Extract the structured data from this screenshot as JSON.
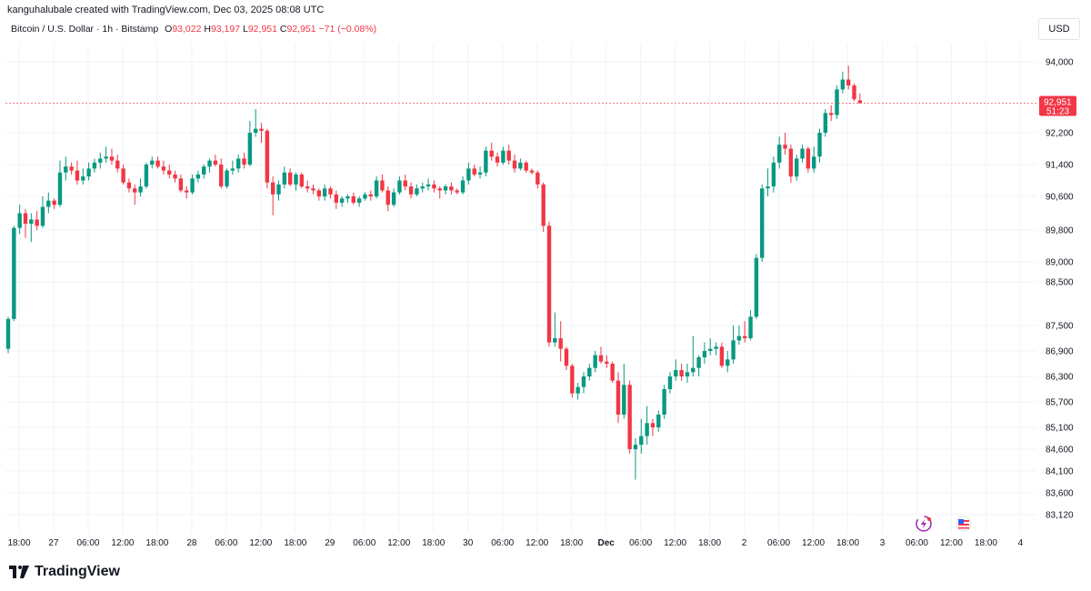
{
  "header": {
    "attribution": "kanguhalubale created with TradingView.com, Dec 03, 2025 08:08 UTC"
  },
  "legend": {
    "symbol": "Bitcoin / U.S. Dollar · 1h · Bitstamp",
    "o_label": "O",
    "o_value": "93,022",
    "h_label": "H",
    "h_value": "93,197",
    "l_label": "L",
    "l_value": "92,951",
    "c_label": "C",
    "c_value": "92,951",
    "change": "−71 (−0.08%)"
  },
  "currency": "USD",
  "price_tag": {
    "price": "92,951",
    "countdown": "51:23"
  },
  "footer": {
    "brand": "TradingView"
  },
  "colors": {
    "up": "#089981",
    "down": "#f23645",
    "text": "#131722",
    "grid": "#f0f3fa"
  },
  "icons": [
    "flash-icon",
    "us-flag-icon"
  ],
  "chart_data": {
    "type": "candlestick",
    "ylim": [
      82800,
      94400
    ],
    "y_ticks": [
      94000,
      92200,
      91400,
      90600,
      89800,
      89000,
      88500,
      87500,
      86900,
      86300,
      85700,
      85100,
      84600,
      84100,
      83600,
      83120
    ],
    "y_tick_labels": [
      "94,000",
      "92,200",
      "91,400",
      "90,600",
      "89,800",
      "89,000",
      "88,500",
      "87,500",
      "86,900",
      "86,300",
      "85,700",
      "85,100",
      "84,600",
      "84,100",
      "83,600",
      "83,120"
    ],
    "x_ticks": [
      {
        "label": "18:00",
        "bar": 0
      },
      {
        "label": "27",
        "bar": 6
      },
      {
        "label": "06:00",
        "bar": 12
      },
      {
        "label": "12:00",
        "bar": 18
      },
      {
        "label": "18:00",
        "bar": 24
      },
      {
        "label": "28",
        "bar": 30
      },
      {
        "label": "06:00",
        "bar": 36
      },
      {
        "label": "12:00",
        "bar": 42
      },
      {
        "label": "18:00",
        "bar": 48
      },
      {
        "label": "29",
        "bar": 54
      },
      {
        "label": "06:00",
        "bar": 60
      },
      {
        "label": "12:00",
        "bar": 66
      },
      {
        "label": "18:00",
        "bar": 72
      },
      {
        "label": "30",
        "bar": 78
      },
      {
        "label": "06:00",
        "bar": 84
      },
      {
        "label": "12:00",
        "bar": 90
      },
      {
        "label": "18:00",
        "bar": 96
      },
      {
        "label": "Dec",
        "bar": 102,
        "bold": true
      },
      {
        "label": "06:00",
        "bar": 108
      },
      {
        "label": "12:00",
        "bar": 114
      },
      {
        "label": "18:00",
        "bar": 120
      },
      {
        "label": "2",
        "bar": 126
      },
      {
        "label": "06:00",
        "bar": 132
      },
      {
        "label": "12:00",
        "bar": 138
      },
      {
        "label": "18:00",
        "bar": 144
      },
      {
        "label": "3",
        "bar": 150
      },
      {
        "label": "06:00",
        "bar": 156
      },
      {
        "label": "12:00",
        "bar": 162
      },
      {
        "label": "18:00",
        "bar": 168
      },
      {
        "label": "4",
        "bar": 174
      }
    ],
    "last_price": 92951,
    "candles": [
      {
        "o": 86950,
        "h": 87700,
        "l": 86850,
        "c": 87650
      },
      {
        "o": 87650,
        "h": 89900,
        "l": 87600,
        "c": 89850
      },
      {
        "o": 89850,
        "h": 90400,
        "l": 89700,
        "c": 90200
      },
      {
        "o": 90200,
        "h": 90300,
        "l": 89600,
        "c": 89950
      },
      {
        "o": 89950,
        "h": 90200,
        "l": 89500,
        "c": 90050
      },
      {
        "o": 90050,
        "h": 90250,
        "l": 89800,
        "c": 89900
      },
      {
        "o": 89900,
        "h": 90600,
        "l": 89850,
        "c": 90350
      },
      {
        "o": 90350,
        "h": 90700,
        "l": 90200,
        "c": 90500
      },
      {
        "o": 90500,
        "h": 90550,
        "l": 90300,
        "c": 90400
      },
      {
        "o": 90400,
        "h": 91500,
        "l": 90350,
        "c": 91200
      },
      {
        "o": 91200,
        "h": 91600,
        "l": 91000,
        "c": 91350
      },
      {
        "o": 91350,
        "h": 91450,
        "l": 91150,
        "c": 91250
      },
      {
        "o": 91250,
        "h": 91500,
        "l": 90900,
        "c": 91000
      },
      {
        "o": 91000,
        "h": 91300,
        "l": 90900,
        "c": 91100
      },
      {
        "o": 91100,
        "h": 91450,
        "l": 91000,
        "c": 91300
      },
      {
        "o": 91300,
        "h": 91550,
        "l": 91200,
        "c": 91450
      },
      {
        "o": 91450,
        "h": 91700,
        "l": 91300,
        "c": 91550
      },
      {
        "o": 91550,
        "h": 91850,
        "l": 91450,
        "c": 91600
      },
      {
        "o": 91600,
        "h": 91800,
        "l": 91400,
        "c": 91500
      },
      {
        "o": 91500,
        "h": 91650,
        "l": 91200,
        "c": 91300
      },
      {
        "o": 91300,
        "h": 91400,
        "l": 90900,
        "c": 90950
      },
      {
        "o": 90950,
        "h": 91050,
        "l": 90700,
        "c": 90800
      },
      {
        "o": 90800,
        "h": 90900,
        "l": 90400,
        "c": 90700
      },
      {
        "o": 90700,
        "h": 91050,
        "l": 90600,
        "c": 90850
      },
      {
        "o": 90850,
        "h": 91450,
        "l": 90800,
        "c": 91400
      },
      {
        "o": 91400,
        "h": 91600,
        "l": 91300,
        "c": 91500
      },
      {
        "o": 91500,
        "h": 91600,
        "l": 91300,
        "c": 91350
      },
      {
        "o": 91350,
        "h": 91500,
        "l": 91150,
        "c": 91250
      },
      {
        "o": 91250,
        "h": 91400,
        "l": 91050,
        "c": 91150
      },
      {
        "o": 91150,
        "h": 91250,
        "l": 90950,
        "c": 91050
      },
      {
        "o": 91050,
        "h": 91150,
        "l": 90700,
        "c": 90750
      },
      {
        "o": 90750,
        "h": 90850,
        "l": 90550,
        "c": 90700
      },
      {
        "o": 90700,
        "h": 91150,
        "l": 90650,
        "c": 91050
      },
      {
        "o": 91050,
        "h": 91250,
        "l": 90950,
        "c": 91150
      },
      {
        "o": 91150,
        "h": 91400,
        "l": 91050,
        "c": 91350
      },
      {
        "o": 91350,
        "h": 91550,
        "l": 91200,
        "c": 91500
      },
      {
        "o": 91500,
        "h": 91650,
        "l": 91350,
        "c": 91400
      },
      {
        "o": 91400,
        "h": 91550,
        "l": 90800,
        "c": 90850
      },
      {
        "o": 90850,
        "h": 91300,
        "l": 90800,
        "c": 91250
      },
      {
        "o": 91250,
        "h": 91500,
        "l": 91150,
        "c": 91300
      },
      {
        "o": 91300,
        "h": 91650,
        "l": 91200,
        "c": 91550
      },
      {
        "o": 91550,
        "h": 91700,
        "l": 91300,
        "c": 91400
      },
      {
        "o": 91400,
        "h": 92500,
        "l": 91350,
        "c": 92200
      },
      {
        "o": 92200,
        "h": 92800,
        "l": 92100,
        "c": 92300
      },
      {
        "o": 92300,
        "h": 92450,
        "l": 91950,
        "c": 92250
      },
      {
        "o": 92250,
        "h": 92300,
        "l": 90800,
        "c": 90950
      },
      {
        "o": 90950,
        "h": 91100,
        "l": 90150,
        "c": 90650
      },
      {
        "o": 90650,
        "h": 91000,
        "l": 90500,
        "c": 90900
      },
      {
        "o": 90900,
        "h": 91350,
        "l": 90800,
        "c": 91200
      },
      {
        "o": 91200,
        "h": 91300,
        "l": 90850,
        "c": 90900
      },
      {
        "o": 90900,
        "h": 91200,
        "l": 90750,
        "c": 91150
      },
      {
        "o": 91150,
        "h": 91200,
        "l": 90800,
        "c": 90850
      },
      {
        "o": 90850,
        "h": 91000,
        "l": 90700,
        "c": 90800
      },
      {
        "o": 90800,
        "h": 90900,
        "l": 90650,
        "c": 90750
      },
      {
        "o": 90750,
        "h": 90800,
        "l": 90500,
        "c": 90600
      },
      {
        "o": 90600,
        "h": 90900,
        "l": 90500,
        "c": 90800
      },
      {
        "o": 90800,
        "h": 90850,
        "l": 90550,
        "c": 90650
      },
      {
        "o": 90650,
        "h": 90750,
        "l": 90300,
        "c": 90450
      },
      {
        "o": 90450,
        "h": 90600,
        "l": 90350,
        "c": 90550
      },
      {
        "o": 90550,
        "h": 90650,
        "l": 90450,
        "c": 90600
      },
      {
        "o": 90600,
        "h": 90700,
        "l": 90400,
        "c": 90450
      },
      {
        "o": 90450,
        "h": 90600,
        "l": 90350,
        "c": 90550
      },
      {
        "o": 90550,
        "h": 90700,
        "l": 90500,
        "c": 90650
      },
      {
        "o": 90650,
        "h": 90750,
        "l": 90500,
        "c": 90600
      },
      {
        "o": 90600,
        "h": 91100,
        "l": 90550,
        "c": 91000
      },
      {
        "o": 91000,
        "h": 91150,
        "l": 90700,
        "c": 90750
      },
      {
        "o": 90750,
        "h": 90850,
        "l": 90250,
        "c": 90400
      },
      {
        "o": 90400,
        "h": 90800,
        "l": 90350,
        "c": 90700
      },
      {
        "o": 90700,
        "h": 91100,
        "l": 90650,
        "c": 91000
      },
      {
        "o": 91000,
        "h": 91150,
        "l": 90750,
        "c": 90850
      },
      {
        "o": 90850,
        "h": 90950,
        "l": 90550,
        "c": 90650
      },
      {
        "o": 90650,
        "h": 90900,
        "l": 90600,
        "c": 90800
      },
      {
        "o": 90800,
        "h": 90950,
        "l": 90700,
        "c": 90850
      },
      {
        "o": 90850,
        "h": 91050,
        "l": 90750,
        "c": 90900
      },
      {
        "o": 90900,
        "h": 91000,
        "l": 90700,
        "c": 90800
      },
      {
        "o": 90800,
        "h": 90850,
        "l": 90550,
        "c": 90750
      },
      {
        "o": 90750,
        "h": 90900,
        "l": 90650,
        "c": 90850
      },
      {
        "o": 90850,
        "h": 90950,
        "l": 90650,
        "c": 90750
      },
      {
        "o": 90750,
        "h": 90800,
        "l": 90650,
        "c": 90700
      },
      {
        "o": 90700,
        "h": 91100,
        "l": 90650,
        "c": 91000
      },
      {
        "o": 91000,
        "h": 91450,
        "l": 90900,
        "c": 91300
      },
      {
        "o": 91300,
        "h": 91400,
        "l": 91100,
        "c": 91150
      },
      {
        "o": 91150,
        "h": 91350,
        "l": 91050,
        "c": 91200
      },
      {
        "o": 91200,
        "h": 91850,
        "l": 91100,
        "c": 91750
      },
      {
        "o": 91750,
        "h": 91950,
        "l": 91500,
        "c": 91600
      },
      {
        "o": 91600,
        "h": 91700,
        "l": 91350,
        "c": 91450
      },
      {
        "o": 91450,
        "h": 91850,
        "l": 91400,
        "c": 91750
      },
      {
        "o": 91750,
        "h": 91900,
        "l": 91400,
        "c": 91500
      },
      {
        "o": 91500,
        "h": 91650,
        "l": 91200,
        "c": 91300
      },
      {
        "o": 91300,
        "h": 91550,
        "l": 91250,
        "c": 91450
      },
      {
        "o": 91450,
        "h": 91500,
        "l": 91200,
        "c": 91250
      },
      {
        "o": 91250,
        "h": 91300,
        "l": 91150,
        "c": 91200
      },
      {
        "o": 91200,
        "h": 91250,
        "l": 90800,
        "c": 90900
      },
      {
        "o": 90900,
        "h": 90950,
        "l": 89750,
        "c": 89900
      },
      {
        "o": 89900,
        "h": 90000,
        "l": 87000,
        "c": 87100
      },
      {
        "o": 87100,
        "h": 87800,
        "l": 87000,
        "c": 87200
      },
      {
        "o": 87200,
        "h": 87600,
        "l": 86650,
        "c": 86950
      },
      {
        "o": 86950,
        "h": 87000,
        "l": 86450,
        "c": 86550
      },
      {
        "o": 86550,
        "h": 86600,
        "l": 85800,
        "c": 85900
      },
      {
        "o": 85900,
        "h": 86150,
        "l": 85750,
        "c": 86050
      },
      {
        "o": 86050,
        "h": 86400,
        "l": 85900,
        "c": 86300
      },
      {
        "o": 86300,
        "h": 86600,
        "l": 86200,
        "c": 86500
      },
      {
        "o": 86500,
        "h": 86900,
        "l": 86400,
        "c": 86800
      },
      {
        "o": 86800,
        "h": 87000,
        "l": 86600,
        "c": 86650
      },
      {
        "o": 86650,
        "h": 86800,
        "l": 86500,
        "c": 86600
      },
      {
        "o": 86600,
        "h": 86650,
        "l": 86150,
        "c": 86200
      },
      {
        "o": 86200,
        "h": 86400,
        "l": 85200,
        "c": 85400
      },
      {
        "o": 85400,
        "h": 86600,
        "l": 85300,
        "c": 86100
      },
      {
        "o": 86100,
        "h": 86200,
        "l": 84500,
        "c": 84600
      },
      {
        "o": 84600,
        "h": 84850,
        "l": 83900,
        "c": 84700
      },
      {
        "o": 84700,
        "h": 85300,
        "l": 84500,
        "c": 84900
      },
      {
        "o": 84900,
        "h": 85600,
        "l": 84700,
        "c": 85200
      },
      {
        "o": 85200,
        "h": 85300,
        "l": 84900,
        "c": 85100
      },
      {
        "o": 85100,
        "h": 85500,
        "l": 85000,
        "c": 85400
      },
      {
        "o": 85400,
        "h": 86100,
        "l": 85300,
        "c": 86000
      },
      {
        "o": 86000,
        "h": 86400,
        "l": 85900,
        "c": 86300
      },
      {
        "o": 86300,
        "h": 86700,
        "l": 86200,
        "c": 86450
      },
      {
        "o": 86450,
        "h": 86600,
        "l": 86200,
        "c": 86300
      },
      {
        "o": 86300,
        "h": 86600,
        "l": 86150,
        "c": 86400
      },
      {
        "o": 86400,
        "h": 87250,
        "l": 86300,
        "c": 86500
      },
      {
        "o": 86500,
        "h": 86800,
        "l": 86300,
        "c": 86750
      },
      {
        "o": 86750,
        "h": 87100,
        "l": 86600,
        "c": 86900
      },
      {
        "o": 86900,
        "h": 87200,
        "l": 86800,
        "c": 86950
      },
      {
        "o": 86950,
        "h": 87100,
        "l": 86800,
        "c": 87000
      },
      {
        "o": 87000,
        "h": 87100,
        "l": 86500,
        "c": 86550
      },
      {
        "o": 86550,
        "h": 86900,
        "l": 86400,
        "c": 86700
      },
      {
        "o": 86700,
        "h": 87500,
        "l": 86600,
        "c": 87150
      },
      {
        "o": 87150,
        "h": 87500,
        "l": 87050,
        "c": 87250
      },
      {
        "o": 87250,
        "h": 87600,
        "l": 87100,
        "c": 87200
      },
      {
        "o": 87200,
        "h": 87850,
        "l": 87150,
        "c": 87700
      },
      {
        "o": 87700,
        "h": 89200,
        "l": 87650,
        "c": 89100
      },
      {
        "o": 89100,
        "h": 90900,
        "l": 89000,
        "c": 90800
      },
      {
        "o": 90800,
        "h": 91300,
        "l": 90600,
        "c": 90850
      },
      {
        "o": 90850,
        "h": 91600,
        "l": 90700,
        "c": 91450
      },
      {
        "o": 91450,
        "h": 92100,
        "l": 91300,
        "c": 91900
      },
      {
        "o": 91900,
        "h": 92200,
        "l": 91650,
        "c": 91800
      },
      {
        "o": 91800,
        "h": 91900,
        "l": 90950,
        "c": 91100
      },
      {
        "o": 91100,
        "h": 91650,
        "l": 91000,
        "c": 91550
      },
      {
        "o": 91550,
        "h": 91900,
        "l": 91450,
        "c": 91800
      },
      {
        "o": 91800,
        "h": 91850,
        "l": 91200,
        "c": 91300
      },
      {
        "o": 91300,
        "h": 91850,
        "l": 91200,
        "c": 91600
      },
      {
        "o": 91600,
        "h": 92300,
        "l": 91450,
        "c": 92200
      },
      {
        "o": 92200,
        "h": 92800,
        "l": 92100,
        "c": 92700
      },
      {
        "o": 92700,
        "h": 92900,
        "l": 92500,
        "c": 92650
      },
      {
        "o": 92650,
        "h": 93400,
        "l": 92550,
        "c": 93300
      },
      {
        "o": 93300,
        "h": 93750,
        "l": 93200,
        "c": 93550
      },
      {
        "o": 93550,
        "h": 93900,
        "l": 93300,
        "c": 93400
      },
      {
        "o": 93400,
        "h": 93450,
        "l": 93000,
        "c": 93050
      },
      {
        "o": 93022,
        "h": 93197,
        "l": 92951,
        "c": 92951
      }
    ]
  }
}
